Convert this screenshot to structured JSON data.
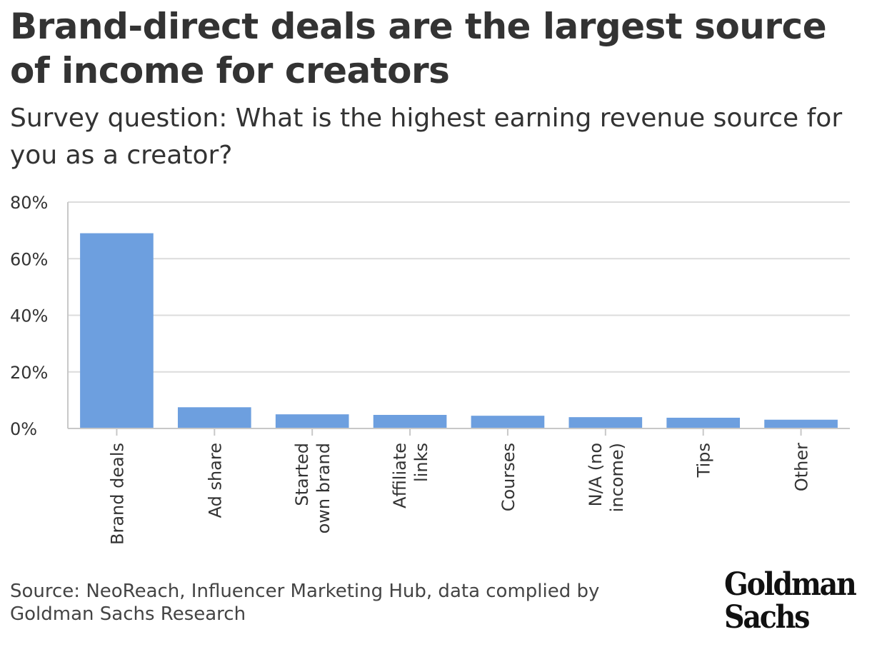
{
  "header": {
    "title": "Brand-direct deals are the largest source of income for creators",
    "subtitle": "Survey question: What is the highest earning revenue source for you as a creator?"
  },
  "footer": {
    "source": "Source: NeoReach, Influencer Marketing Hub, data complied by Goldman Sachs Research",
    "logo_line1": "Goldman",
    "logo_line2": "Sachs"
  },
  "colors": {
    "bar": "#6d9fdf",
    "grid": "#dcdcdc",
    "axis": "#c8c8c8",
    "text": "#333333"
  },
  "chart_data": {
    "type": "bar",
    "categories": [
      [
        "Brand deals"
      ],
      [
        "Ad share"
      ],
      [
        "Started",
        "own brand"
      ],
      [
        "Affiliate",
        "links"
      ],
      [
        "Courses"
      ],
      [
        "N/A (no",
        "income)"
      ],
      [
        "Tips"
      ],
      [
        "Other"
      ]
    ],
    "values": [
      69,
      7.5,
      5,
      4.8,
      4.5,
      4,
      3.8,
      3.1
    ],
    "ylim": [
      0,
      80
    ],
    "yticks": [
      0,
      20,
      40,
      60,
      80
    ],
    "ytick_labels": [
      "0%",
      "20%",
      "40%",
      "60%",
      "80%"
    ],
    "grid": true,
    "xlabel": "",
    "ylabel": ""
  }
}
